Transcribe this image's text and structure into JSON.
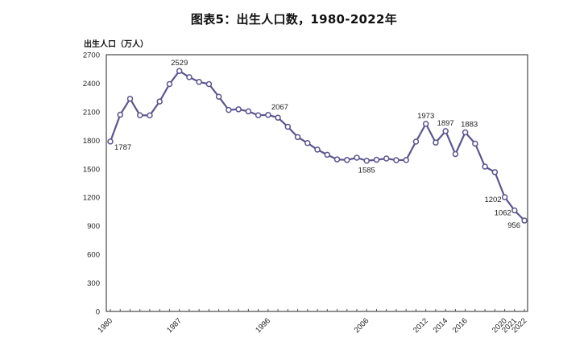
{
  "chart_data": {
    "type": "line",
    "title": "图表5：出生人口数，1980-2022年",
    "xlabel": "",
    "ylabel": "出生人口（万人）",
    "ylim": [
      0,
      2700
    ],
    "yticks": [
      0,
      300,
      600,
      900,
      1200,
      1500,
      1800,
      2100,
      2400,
      2700
    ],
    "xtick_labels": [
      "1980",
      "1987",
      "1996",
      "2006",
      "2012",
      "2014",
      "2016",
      "2020",
      "2021",
      "2022"
    ],
    "grid": false,
    "legend": null,
    "line_color": "#5b5590",
    "x": [
      1980,
      1981,
      1982,
      1983,
      1984,
      1985,
      1986,
      1987,
      1988,
      1989,
      1990,
      1991,
      1992,
      1993,
      1994,
      1995,
      1996,
      1997,
      1998,
      1999,
      2000,
      2001,
      2002,
      2003,
      2004,
      2005,
      2006,
      2007,
      2008,
      2009,
      2010,
      2011,
      2012,
      2013,
      2014,
      2015,
      2016,
      2017,
      2018,
      2019,
      2020,
      2021,
      2022
    ],
    "series": [
      {
        "name": "出生人口",
        "values": [
          1787,
          2069,
          2237,
          2063,
          2062,
          2208,
          2391,
          2529,
          2464,
          2414,
          2391,
          2258,
          2119,
          2126,
          2104,
          2063,
          2067,
          2038,
          1942,
          1834,
          1771,
          1702,
          1647,
          1599,
          1593,
          1617,
          1585,
          1595,
          1608,
          1591,
          1592,
          1786,
          1973,
          1776,
          1897,
          1655,
          1883,
          1765,
          1523,
          1465,
          1202,
          1062,
          956
        ]
      }
    ],
    "annotations": [
      {
        "year": 1980,
        "text": "1787"
      },
      {
        "year": 1987,
        "text": "2529"
      },
      {
        "year": 1996,
        "text": "2067"
      },
      {
        "year": 2006,
        "text": "1585"
      },
      {
        "year": 2012,
        "text": "1973"
      },
      {
        "year": 2014,
        "text": "1897"
      },
      {
        "year": 2016,
        "text": "1883"
      },
      {
        "year": 2020,
        "text": "1202"
      },
      {
        "year": 2021,
        "text": "1062"
      },
      {
        "year": 2022,
        "text": "956"
      }
    ]
  },
  "header": {
    "title": "图表5：出生人口数，1980-2022年",
    "y_axis_title": "出生人口（万人）"
  }
}
